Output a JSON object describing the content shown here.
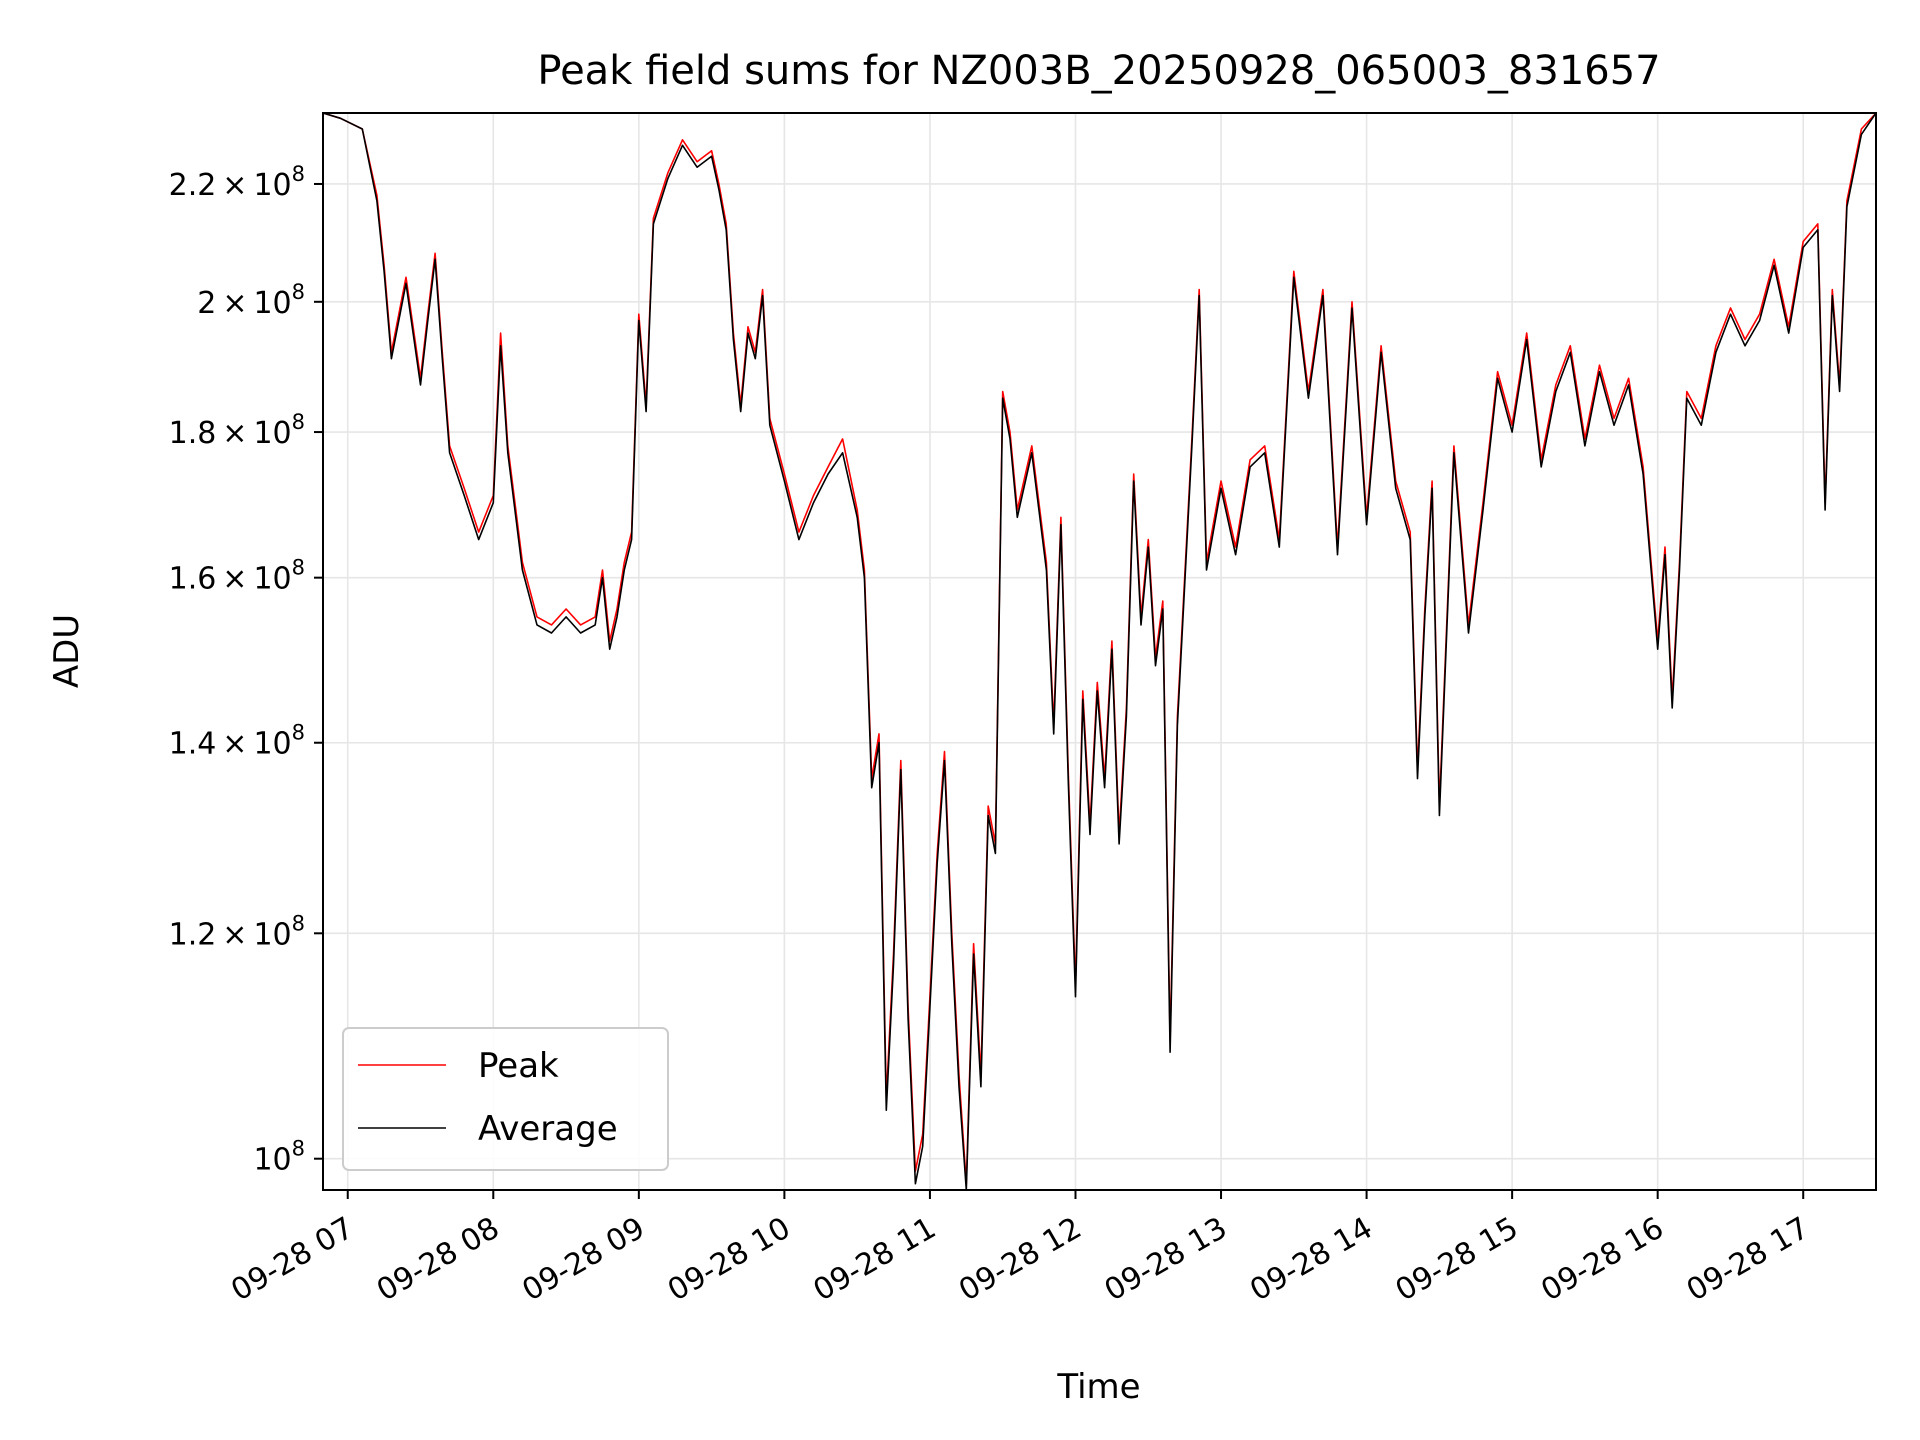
{
  "chart_data": {
    "type": "line",
    "title": "Peak field sums for NZ003B_20250928_065003_831657",
    "xlabel": "Time",
    "ylabel": "ADU",
    "yscale": "log",
    "xlim": [
      6.83,
      17.5
    ],
    "ylim": [
      97500000.0,
      233000000.0
    ],
    "grid": true,
    "legend_loc": "lower left",
    "x_ticks": [
      {
        "value": 7,
        "label": "09-28 07"
      },
      {
        "value": 8,
        "label": "09-28 08"
      },
      {
        "value": 9,
        "label": "09-28 09"
      },
      {
        "value": 10,
        "label": "09-28 10"
      },
      {
        "value": 11,
        "label": "09-28 11"
      },
      {
        "value": 12,
        "label": "09-28 12"
      },
      {
        "value": 13,
        "label": "09-28 13"
      },
      {
        "value": 14,
        "label": "09-28 14"
      },
      {
        "value": 15,
        "label": "09-28 15"
      },
      {
        "value": 16,
        "label": "09-28 16"
      },
      {
        "value": 17,
        "label": "09-28 17"
      }
    ],
    "y_ticks": [
      {
        "value": 100000000,
        "mant": "",
        "exp": "8"
      },
      {
        "value": 120000000,
        "mant": "1.2",
        "exp": "8"
      },
      {
        "value": 140000000,
        "mant": "1.4",
        "exp": "8"
      },
      {
        "value": 160000000,
        "mant": "1.6",
        "exp": "8"
      },
      {
        "value": 180000000,
        "mant": "1.8",
        "exp": "8"
      },
      {
        "value": 200000000,
        "mant": "2",
        "exp": "8"
      },
      {
        "value": 220000000,
        "mant": "2.2",
        "exp": "8"
      }
    ],
    "x_hours": [
      6.83,
      6.95,
      7.1,
      7.2,
      7.25,
      7.3,
      7.4,
      7.5,
      7.55,
      7.6,
      7.65,
      7.7,
      7.8,
      7.9,
      8.0,
      8.05,
      8.1,
      8.2,
      8.3,
      8.4,
      8.5,
      8.6,
      8.7,
      8.75,
      8.8,
      8.85,
      8.9,
      8.95,
      9.0,
      9.05,
      9.1,
      9.2,
      9.3,
      9.4,
      9.5,
      9.55,
      9.6,
      9.65,
      9.7,
      9.75,
      9.8,
      9.85,
      9.9,
      10.0,
      10.1,
      10.2,
      10.3,
      10.4,
      10.5,
      10.55,
      10.6,
      10.65,
      10.7,
      10.75,
      10.8,
      10.85,
      10.9,
      10.95,
      11.0,
      11.05,
      11.1,
      11.15,
      11.2,
      11.25,
      11.3,
      11.35,
      11.4,
      11.45,
      11.5,
      11.55,
      11.6,
      11.7,
      11.8,
      11.85,
      11.9,
      11.95,
      12.0,
      12.05,
      12.1,
      12.15,
      12.2,
      12.25,
      12.3,
      12.35,
      12.4,
      12.45,
      12.5,
      12.55,
      12.6,
      12.65,
      12.7,
      12.8,
      12.85,
      12.9,
      13.0,
      13.1,
      13.2,
      13.3,
      13.4,
      13.5,
      13.6,
      13.7,
      13.8,
      13.9,
      14.0,
      14.1,
      14.2,
      14.3,
      14.35,
      14.4,
      14.45,
      14.5,
      14.6,
      14.7,
      14.8,
      14.9,
      15.0,
      15.1,
      15.2,
      15.3,
      15.4,
      15.5,
      15.6,
      15.7,
      15.8,
      15.9,
      16.0,
      16.05,
      16.1,
      16.15,
      16.2,
      16.3,
      16.4,
      16.5,
      16.6,
      16.7,
      16.8,
      16.9,
      17.0,
      17.1,
      17.15,
      17.2,
      17.25,
      17.3,
      17.4,
      17.5
    ],
    "series": [
      {
        "name": "Peak",
        "color": "#ff0000",
        "values": [
          233000000.0,
          232000000.0,
          230000000.0,
          218000000.0,
          206000000.0,
          192000000.0,
          204000000.0,
          188000000.0,
          198000000.0,
          208000000.0,
          192000000.0,
          178000000.0,
          172000000.0,
          166000000.0,
          171000000.0,
          195000000.0,
          178000000.0,
          162000000.0,
          155000000.0,
          154000000.0,
          156000000.0,
          154000000.0,
          155000000.0,
          161000000.0,
          152000000.0,
          156000000.0,
          162000000.0,
          166000000.0,
          198000000.0,
          184000000.0,
          214000000.0,
          222000000.0,
          228000000.0,
          224000000.0,
          226000000.0,
          220000000.0,
          213000000.0,
          195000000.0,
          184000000.0,
          196000000.0,
          192000000.0,
          202000000.0,
          182000000.0,
          174000000.0,
          166000000.0,
          171000000.0,
          175000000.0,
          179000000.0,
          169000000.0,
          161000000.0,
          136000000.0,
          141000000.0,
          105000000.0,
          118000000.0,
          138000000.0,
          113000000.0,
          99000000.0,
          102000000.0,
          114000000.0,
          128000000.0,
          139000000.0,
          120000000.0,
          107000000.0,
          98000000.0,
          119000000.0,
          107000000.0,
          133000000.0,
          129000000.0,
          186000000.0,
          180000000.0,
          169000000.0,
          178000000.0,
          162000000.0,
          142000000.0,
          168000000.0,
          137000000.0,
          115000000.0,
          146000000.0,
          131000000.0,
          147000000.0,
          136000000.0,
          152000000.0,
          130000000.0,
          144000000.0,
          174000000.0,
          155000000.0,
          165000000.0,
          150000000.0,
          157000000.0,
          110000000.0,
          143000000.0,
          179000000.0,
          202000000.0,
          162000000.0,
          173000000.0,
          164000000.0,
          176000000.0,
          178000000.0,
          165000000.0,
          205000000.0,
          186000000.0,
          202000000.0,
          164000000.0,
          200000000.0,
          168000000.0,
          193000000.0,
          173000000.0,
          166000000.0,
          137000000.0,
          156000000.0,
          173000000.0,
          133000000.0,
          178000000.0,
          154000000.0,
          170000000.0,
          189000000.0,
          181000000.0,
          195000000.0,
          176000000.0,
          187000000.0,
          193000000.0,
          179000000.0,
          190000000.0,
          182000000.0,
          188000000.0,
          175000000.0,
          152000000.0,
          164000000.0,
          145000000.0,
          162000000.0,
          186000000.0,
          182000000.0,
          193000000.0,
          199000000.0,
          194000000.0,
          198000000.0,
          207000000.0,
          196000000.0,
          210000000.0,
          213000000.0,
          170000000.0,
          202000000.0,
          187000000.0,
          217000000.0,
          230000000.0,
          233000000.0
        ]
      },
      {
        "name": "Average",
        "color": "#000000",
        "values": [
          233000000.0,
          232000000.0,
          230000000.0,
          217000000.0,
          205000000.0,
          191000000.0,
          203000000.0,
          187000000.0,
          197000000.0,
          207000000.0,
          191000000.0,
          177000000.0,
          171000000.0,
          165000000.0,
          170000000.0,
          193000000.0,
          177000000.0,
          161000000.0,
          154000000.0,
          153000000.0,
          155000000.0,
          153000000.0,
          154000000.0,
          160000000.0,
          151000000.0,
          155000000.0,
          161000000.0,
          165000000.0,
          197000000.0,
          183000000.0,
          213000000.0,
          221000000.0,
          227000000.0,
          223000000.0,
          225000000.0,
          219000000.0,
          212000000.0,
          194000000.0,
          183000000.0,
          195000000.0,
          191000000.0,
          201000000.0,
          181000000.0,
          173000000.0,
          165000000.0,
          170000000.0,
          174000000.0,
          177000000.0,
          168000000.0,
          160000000.0,
          135000000.0,
          140000000.0,
          104000000.0,
          117000000.0,
          137000000.0,
          112000000.0,
          98000000.0,
          101000000.0,
          113000000.0,
          127000000.0,
          138000000.0,
          119000000.0,
          106000000.0,
          97000000.0,
          118000000.0,
          106000000.0,
          132000000.0,
          128000000.0,
          185000000.0,
          179000000.0,
          168000000.0,
          177000000.0,
          161000000.0,
          141000000.0,
          167000000.0,
          136000000.0,
          114000000.0,
          145000000.0,
          130000000.0,
          146000000.0,
          135000000.0,
          151000000.0,
          129000000.0,
          143000000.0,
          173000000.0,
          154000000.0,
          164000000.0,
          149000000.0,
          156000000.0,
          109000000.0,
          142000000.0,
          178000000.0,
          201000000.0,
          161000000.0,
          172000000.0,
          163000000.0,
          175000000.0,
          177000000.0,
          164000000.0,
          204000000.0,
          185000000.0,
          201000000.0,
          163000000.0,
          199000000.0,
          167000000.0,
          192000000.0,
          172000000.0,
          165000000.0,
          136000000.0,
          155000000.0,
          172000000.0,
          132000000.0,
          177000000.0,
          153000000.0,
          169000000.0,
          188000000.0,
          180000000.0,
          194000000.0,
          175000000.0,
          186000000.0,
          192000000.0,
          178000000.0,
          189000000.0,
          181000000.0,
          187000000.0,
          174000000.0,
          151000000.0,
          163000000.0,
          144000000.0,
          161000000.0,
          185000000.0,
          181000000.0,
          192000000.0,
          198000000.0,
          193000000.0,
          197000000.0,
          206000000.0,
          195000000.0,
          209000000.0,
          212000000.0,
          169000000.0,
          201000000.0,
          186000000.0,
          216000000.0,
          229000000.0,
          233000000.0
        ]
      }
    ]
  }
}
